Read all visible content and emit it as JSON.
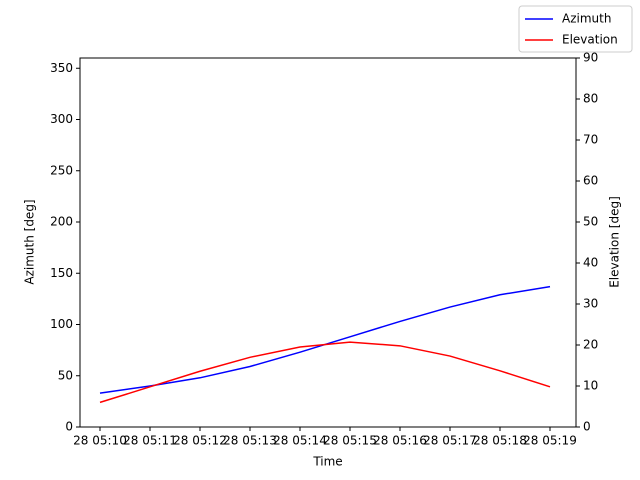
{
  "chart_data": {
    "type": "line",
    "xlabel": "Time",
    "ylabel": "Azimuth [deg]",
    "y2label": "Elevation [deg]",
    "categories": [
      "28 05:10",
      "28 05:11",
      "28 05:12",
      "28 05:13",
      "28 05:14",
      "28 05:15",
      "28 05:16",
      "28 05:17",
      "28 05:18",
      "28 05:19"
    ],
    "series": [
      {
        "name": "Azimuth",
        "color": "#0000ff",
        "values": [
          33,
          40,
          48,
          59,
          73,
          88,
          103,
          117,
          129,
          137
        ]
      },
      {
        "name": "Elevation",
        "color": "#ff0000",
        "axis": "y2",
        "values": [
          6,
          9.8,
          13.6,
          17,
          19.5,
          20.7,
          19.8,
          17.3,
          13.7,
          9.8
        ]
      }
    ],
    "ylim": [
      0,
      360
    ],
    "yticks": [
      0,
      50,
      100,
      150,
      200,
      250,
      300,
      350
    ],
    "y2lim": [
      0,
      90
    ],
    "y2ticks": [
      0,
      10,
      20,
      30,
      40,
      50,
      60,
      70,
      80,
      90
    ],
    "grid": false,
    "legend": "upper right"
  }
}
